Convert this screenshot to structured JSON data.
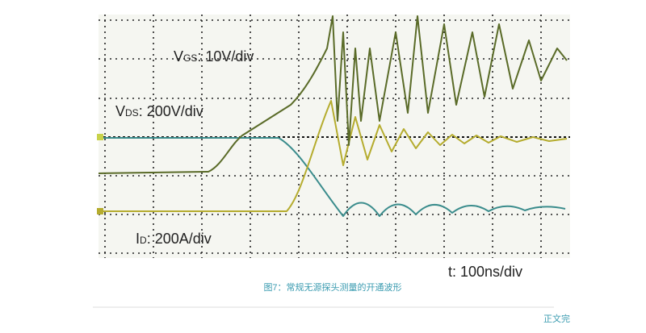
{
  "figure": {
    "labels": [
      {
        "main": "V",
        "sub": "GS",
        "rest": ": 10V/div"
      },
      {
        "main": "V",
        "sub": "DS",
        "rest": ": 200V/div"
      },
      {
        "main": "I",
        "sub": "D",
        "rest": ": 200A/div"
      }
    ],
    "time_label": "t: 100ns/div"
  },
  "caption": "图7：常规无源探头测量的开通波形",
  "footer": "正文完"
}
